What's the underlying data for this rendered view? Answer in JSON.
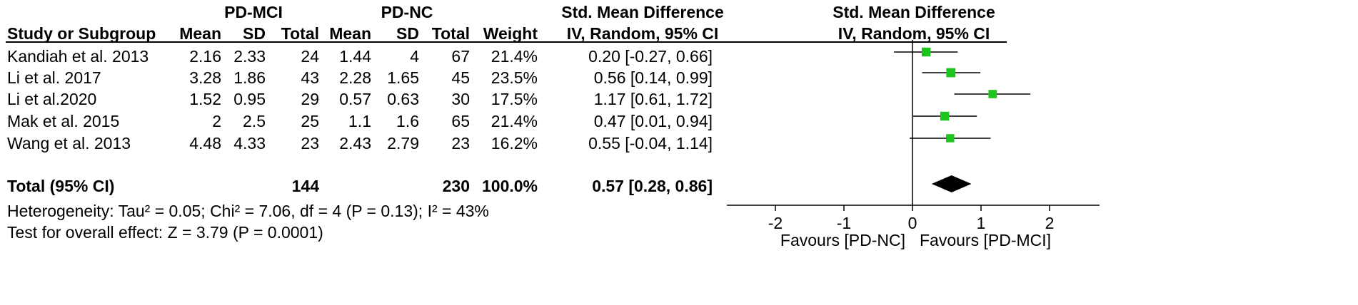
{
  "headers": {
    "group1": "PD-MCI",
    "group2": "PD-NC",
    "smd_top": "Std. Mean Difference",
    "smd_method": "IV, Random, 95% CI",
    "plot_top": "Std. Mean Difference",
    "plot_method": "IV, Random, 95% CI",
    "study": "Study or Subgroup",
    "mean1": "Mean",
    "sd1": "SD",
    "total1": "Total",
    "mean2": "Mean",
    "sd2": "SD",
    "total2": "Total",
    "weight": "Weight"
  },
  "studies": [
    {
      "name": "Kandiah et al. 2013",
      "mean1": "2.16",
      "sd1": "2.33",
      "n1": "24",
      "mean2": "1.44",
      "sd2": "4",
      "n2": "67",
      "weight": "21.4%",
      "ci_text": "0.20 [-0.27, 0.66]"
    },
    {
      "name": "Li et al. 2017",
      "mean1": "3.28",
      "sd1": "1.86",
      "n1": "43",
      "mean2": "2.28",
      "sd2": "1.65",
      "n2": "45",
      "weight": "23.5%",
      "ci_text": "0.56 [0.14, 0.99]"
    },
    {
      "name": "Li et al.2020",
      "mean1": "1.52",
      "sd1": "0.95",
      "n1": "29",
      "mean2": "0.57",
      "sd2": "0.63",
      "n2": "30",
      "weight": "17.5%",
      "ci_text": "1.17 [0.61, 1.72]"
    },
    {
      "name": "Mak et al. 2015",
      "mean1": "2",
      "sd1": "2.5",
      "n1": "25",
      "mean2": "1.1",
      "sd2": "1.6",
      "n2": "65",
      "weight": "21.4%",
      "ci_text": "0.47 [0.01, 0.94]"
    },
    {
      "name": "Wang et al. 2013",
      "mean1": "4.48",
      "sd1": "4.33",
      "n1": "23",
      "mean2": "2.43",
      "sd2": "2.79",
      "n2": "23",
      "weight": "16.2%",
      "ci_text": "0.55 [-0.04, 1.14]"
    }
  ],
  "total": {
    "label": "Total (95% CI)",
    "n1": "144",
    "n2": "230",
    "weight": "100.0%",
    "ci_text": "0.57 [0.28, 0.86]"
  },
  "heterogeneity": "Heterogeneity: Tau² = 0.05; Chi² = 7.06, df = 4 (P = 0.13); I² = 43%",
  "overall_effect": "Test for overall effect: Z = 3.79 (P = 0.0001)",
  "axis": {
    "left_label": "Favours [PD-NC]",
    "right_label": "Favours [PD-MCI]"
  },
  "colors": {
    "point": "#1ec41e",
    "diamond": "#000000"
  },
  "chart_data": {
    "type": "forest",
    "xlim": [
      -2.8,
      2.8
    ],
    "ticks": [
      -2,
      -1,
      0,
      1,
      2
    ],
    "tick_labels": [
      "-2",
      "-1",
      "0",
      "1",
      "2"
    ],
    "series": [
      {
        "study": "Kandiah et al. 2013",
        "estimate": 0.2,
        "lower": -0.27,
        "upper": 0.66,
        "weight": 21.4
      },
      {
        "study": "Li et al. 2017",
        "estimate": 0.56,
        "lower": 0.14,
        "upper": 0.99,
        "weight": 23.5
      },
      {
        "study": "Li et al.2020",
        "estimate": 1.17,
        "lower": 0.61,
        "upper": 1.72,
        "weight": 17.5
      },
      {
        "study": "Mak et al. 2015",
        "estimate": 0.47,
        "lower": 0.01,
        "upper": 0.94,
        "weight": 21.4
      },
      {
        "study": "Wang et al. 2013",
        "estimate": 0.55,
        "lower": -0.04,
        "upper": 1.14,
        "weight": 16.2
      }
    ],
    "pooled": {
      "estimate": 0.57,
      "lower": 0.28,
      "upper": 0.86
    }
  }
}
